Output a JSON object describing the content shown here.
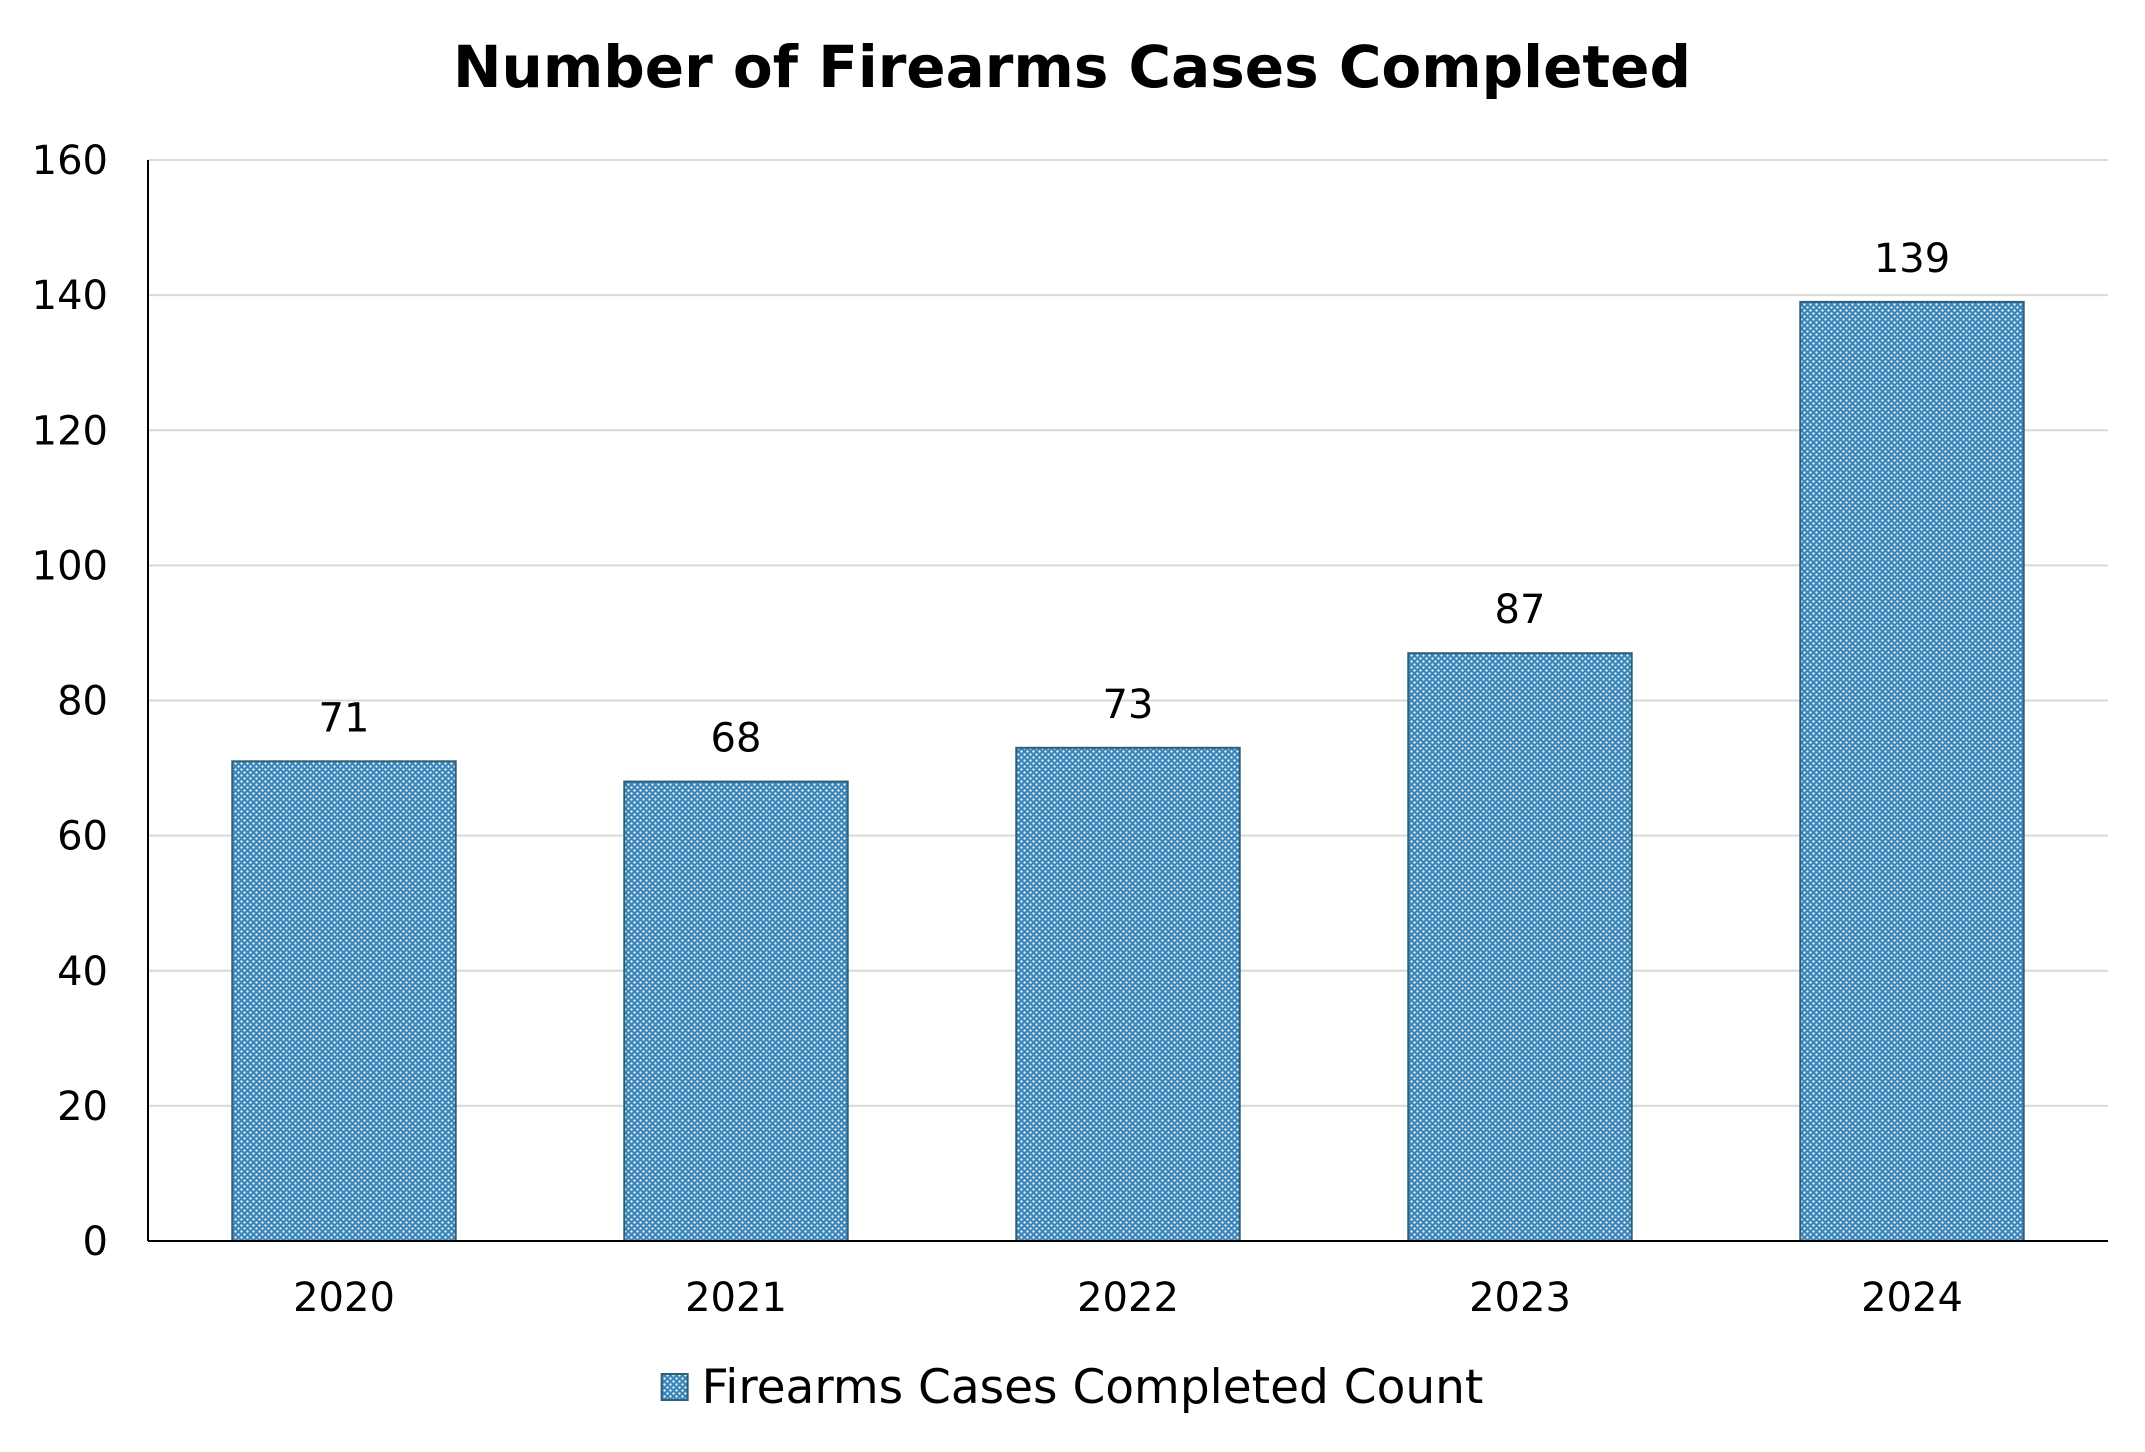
{
  "chart_data": {
    "type": "bar",
    "title": "Number of Firearms Cases Completed",
    "xlabel": "",
    "ylabel": "",
    "categories": [
      "2020",
      "2021",
      "2022",
      "2023",
      "2024"
    ],
    "series": [
      {
        "name": "Firearms Cases Completed Count",
        "values": [
          71,
          68,
          73,
          87,
          139
        ],
        "color": "#3a86b8",
        "pattern": "dotted-fill"
      }
    ],
    "ylim": [
      0,
      160
    ],
    "yticks": [
      "0",
      "20",
      "40",
      "60",
      "80",
      "100",
      "120",
      "140",
      "160"
    ],
    "data_labels": [
      "71",
      "68",
      "73",
      "87",
      "139"
    ],
    "grid": true,
    "legend_position": "bottom-center"
  }
}
